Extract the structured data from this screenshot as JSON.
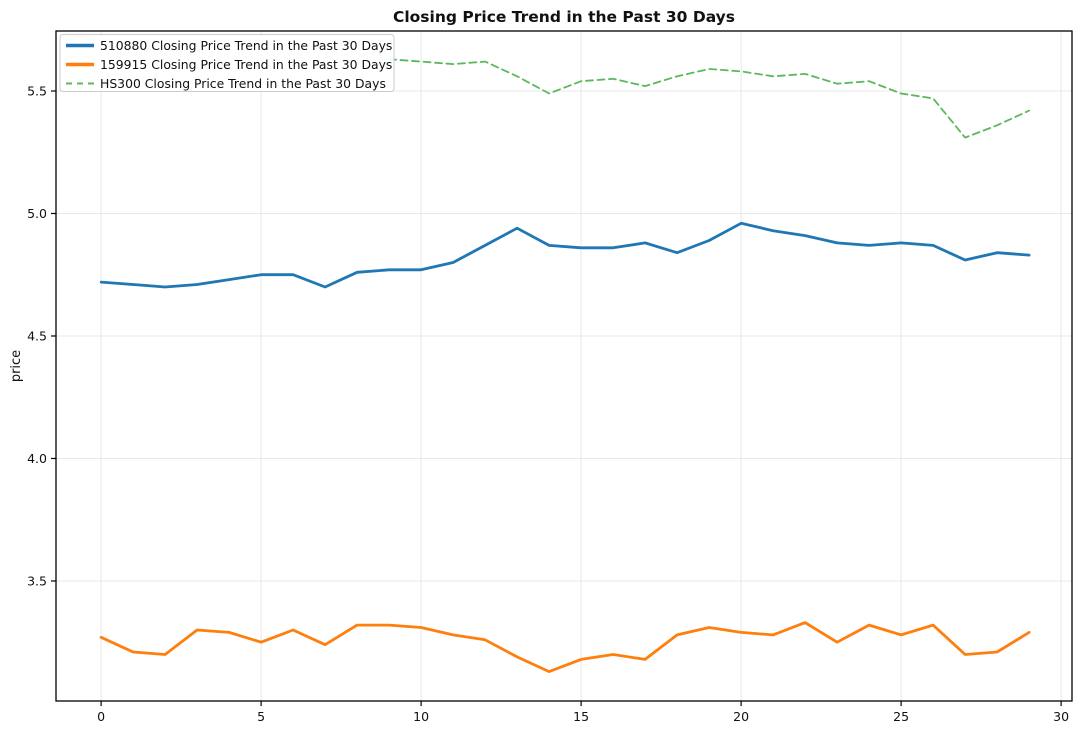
{
  "chart_data": {
    "type": "line",
    "title": "Closing Price Trend in the Past 30 Days",
    "xlabel": "",
    "ylabel": "price",
    "grid": true,
    "legend_position": "upper left",
    "xlim": [
      -1.41,
      30.34
    ],
    "ylim": [
      3.01,
      5.745
    ],
    "x_tick_values": [
      0,
      5,
      10,
      15,
      20,
      25,
      30
    ],
    "x_tick_labels": [
      "0",
      "5",
      "10",
      "15",
      "20",
      "25",
      "30"
    ],
    "y_tick_values": [
      3.5,
      4.0,
      4.5,
      5.0,
      5.5
    ],
    "y_tick_labels": [
      "3.5",
      "4.0",
      "4.5",
      "5.0",
      "5.5"
    ],
    "x": [
      0,
      1,
      2,
      3,
      4,
      5,
      6,
      7,
      8,
      9,
      10,
      11,
      12,
      13,
      14,
      15,
      16,
      17,
      18,
      19,
      20,
      21,
      22,
      23,
      24,
      25,
      26,
      27,
      28,
      29
    ],
    "series": [
      {
        "name": "510880 Closing Price Trend in the Past 30 Days",
        "color": "#1f77b4",
        "line_style": "solid",
        "line_width": 2.8,
        "values": [
          4.72,
          4.71,
          4.7,
          4.71,
          4.73,
          4.75,
          4.75,
          4.7,
          4.76,
          4.77,
          4.77,
          4.8,
          4.87,
          4.94,
          4.87,
          4.86,
          4.86,
          4.88,
          4.84,
          4.89,
          4.96,
          4.93,
          4.91,
          4.88,
          4.87,
          4.88,
          4.87,
          4.81,
          4.84,
          4.83
        ]
      },
      {
        "name": "159915 Closing Price Trend in the Past 30 Days",
        "color": "#ff7f0e",
        "line_style": "solid",
        "line_width": 2.8,
        "values": [
          3.27,
          3.21,
          3.2,
          3.3,
          3.29,
          3.25,
          3.3,
          3.24,
          3.32,
          3.32,
          3.31,
          3.28,
          3.26,
          3.19,
          3.13,
          3.18,
          3.2,
          3.18,
          3.28,
          3.31,
          3.29,
          3.28,
          3.33,
          3.25,
          3.32,
          3.28,
          3.32,
          3.2,
          3.21,
          3.29
        ]
      },
      {
        "name": "HS300 Closing Price Trend in the Past 30 Days",
        "color": "#5cb85c",
        "line_style": "dashed",
        "line_width": 1.8,
        "values": [
          null,
          null,
          null,
          null,
          null,
          null,
          null,
          null,
          null,
          5.63,
          5.62,
          5.61,
          5.62,
          5.56,
          5.49,
          5.54,
          5.55,
          5.52,
          5.56,
          5.59,
          5.58,
          5.56,
          5.57,
          5.53,
          5.54,
          5.49,
          5.47,
          5.31,
          5.36,
          5.42
        ]
      }
    ]
  },
  "colors": {
    "grid": "#e8e8e8",
    "spine": "#000000",
    "legend_border": "#cccccc",
    "background": "#ffffff"
  }
}
